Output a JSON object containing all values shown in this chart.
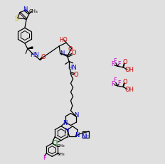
{
  "bg": "#e0e0e0",
  "bond_color": "#000000",
  "N_color": "#0000cc",
  "S_color": "#ccbb00",
  "O_color": "#cc0000",
  "F_color": "#cc00cc",
  "Cl_color": "#007700",
  "scale": 1.0
}
